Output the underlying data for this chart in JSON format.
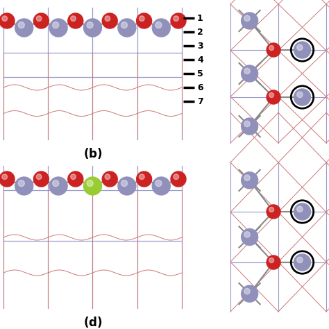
{
  "mn_color": "#9090bb",
  "o_color": "#cc2222",
  "dopant_color": "#99cc33",
  "bg_color": "#ffffff",
  "grid_blue": "#9999cc",
  "grid_red": "#cc7777",
  "bond_color": "#888888",
  "panel_b_label": "(b)",
  "panel_d_label": "(d)",
  "legend_labels": [
    "1",
    "2",
    "3",
    "4",
    "5",
    "6",
    "7"
  ]
}
